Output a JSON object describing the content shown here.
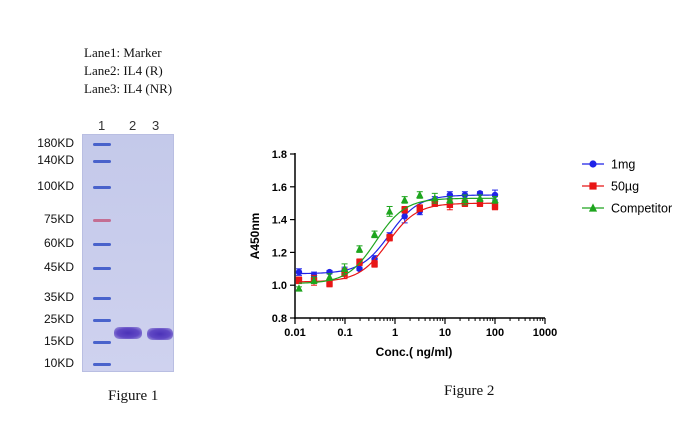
{
  "figure1": {
    "lane_legend": [
      "Lane1: Marker",
      "Lane2: IL4  (R)",
      "Lane3: IL4  (NR)"
    ],
    "lane_numbers": [
      "1",
      "2",
      "3"
    ],
    "mw_markers": [
      "180KD",
      "140KD",
      "100KD",
      "75KD",
      "60KD",
      "45KD",
      "35KD",
      "25KD",
      "15KD",
      "10KD"
    ],
    "caption": "Figure 1",
    "colors": {
      "gel": "#c6cbeb",
      "ladder": "#3b56c8",
      "ladder_75kd": "#c3648a",
      "sample_band": "#4b32b8"
    }
  },
  "figure2": {
    "caption": "Figure 2"
  },
  "chart_data": {
    "type": "scatter",
    "title": "",
    "xlabel": "Conc.( ng/ml)",
    "ylabel": "A450nm",
    "xscale": "log",
    "xlim": [
      0.01,
      1000
    ],
    "ylim": [
      0.8,
      1.8
    ],
    "xticks": [
      "0.01",
      "0.1",
      "1",
      "10",
      "100",
      "1000"
    ],
    "yticks": [
      "0.8",
      "1.0",
      "1.2",
      "1.4",
      "1.6",
      "1.8"
    ],
    "x": [
      0.012,
      0.024,
      0.049,
      0.098,
      0.195,
      0.39,
      0.78,
      1.56,
      3.13,
      6.25,
      12.5,
      25,
      50,
      100
    ],
    "legend_position": "top-right",
    "series": [
      {
        "name": "1mg",
        "color": "#1f22e8",
        "marker": "circle",
        "values": [
          1.08,
          1.06,
          1.08,
          1.09,
          1.1,
          1.16,
          1.3,
          1.42,
          1.45,
          1.52,
          1.55,
          1.55,
          1.56,
          1.55
        ],
        "errors": [
          0.02,
          0.02,
          0.01,
          0.02,
          0.01,
          0.02,
          0.02,
          0.04,
          0.02,
          0.02,
          0.02,
          0.02,
          0.01,
          0.03
        ],
        "fit": {
          "bottom": 1.07,
          "top": 1.55,
          "ec50": 0.78,
          "hill": 1.5
        }
      },
      {
        "name": "50µg",
        "color": "#e81616",
        "marker": "square",
        "values": [
          1.03,
          1.03,
          1.01,
          1.07,
          1.14,
          1.13,
          1.29,
          1.46,
          1.47,
          1.5,
          1.49,
          1.5,
          1.5,
          1.48
        ],
        "errors": [
          0.02,
          0.03,
          0.02,
          0.03,
          0.02,
          0.02,
          0.02,
          0.02,
          0.02,
          0.02,
          0.03,
          0.02,
          0.02,
          0.02
        ],
        "fit": {
          "bottom": 1.02,
          "top": 1.5,
          "ec50": 0.72,
          "hill": 1.5
        }
      },
      {
        "name": "Competitor",
        "color": "#1ea51e",
        "marker": "triangle",
        "values": [
          0.98,
          1.03,
          1.05,
          1.1,
          1.22,
          1.31,
          1.45,
          1.52,
          1.55,
          1.53,
          1.52,
          1.52,
          1.53,
          1.52
        ],
        "errors": [
          0.01,
          0.02,
          0.02,
          0.03,
          0.02,
          0.02,
          0.03,
          0.02,
          0.02,
          0.03,
          0.02,
          0.03,
          0.02,
          0.02
        ],
        "fit": {
          "bottom": 1.01,
          "top": 1.53,
          "ec50": 0.42,
          "hill": 1.5
        }
      }
    ]
  }
}
